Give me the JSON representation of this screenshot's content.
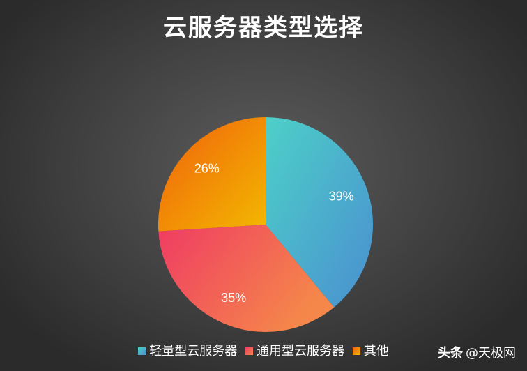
{
  "chart_data": {
    "type": "pie",
    "title": "云服务器类型选择",
    "categories": [
      "轻量型云服务器",
      "通用型云服务器",
      "其他"
    ],
    "values": [
      39,
      35,
      26
    ],
    "data_labels": [
      "39%",
      "35%",
      "26%"
    ],
    "legend_position": "bottom",
    "colors": [
      [
        "#4dd0c8",
        "#4a8fd0"
      ],
      [
        "#ef3b63",
        "#f5874a"
      ],
      [
        "#f0600c",
        "#f3b800"
      ]
    ]
  },
  "watermark": {
    "brand": "头条",
    "account": "@天极网"
  }
}
